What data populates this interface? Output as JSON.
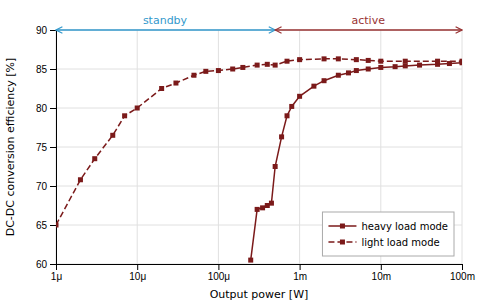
{
  "chart_data": {
    "type": "line",
    "xlabel": "Output power [W]",
    "ylabel": "DC-DC conversion efficiency [%]",
    "log": "x",
    "xlim": [
      1e-06,
      0.1
    ],
    "ylim": [
      60,
      90
    ],
    "xticks": [
      {
        "value": 1e-06,
        "label": "1μ"
      },
      {
        "value": 1e-05,
        "label": "10μ"
      },
      {
        "value": 0.0001,
        "label": "100μ"
      },
      {
        "value": 0.001,
        "label": "1m"
      },
      {
        "value": 0.01,
        "label": "10m"
      },
      {
        "value": 0.1,
        "label": "100m"
      }
    ],
    "yticks": [
      60,
      65,
      70,
      75,
      80,
      85,
      90
    ],
    "grid": true,
    "legend": "lower right",
    "series": [
      {
        "name": "heavy load mode",
        "color": "#7B1A1A",
        "marker": "square",
        "line_style": "solid",
        "x": [
          0.00025,
          0.0003,
          0.00035,
          0.0004,
          0.00045,
          0.0005,
          0.0006,
          0.0007,
          0.0008,
          0.001,
          0.0015,
          0.002,
          0.003,
          0.004,
          0.005,
          0.007,
          0.01,
          0.015,
          0.02,
          0.03,
          0.05,
          0.07,
          0.1
        ],
        "values": [
          60.5,
          67.0,
          67.2,
          67.5,
          67.8,
          72.5,
          76.3,
          79.0,
          80.2,
          81.5,
          82.8,
          83.5,
          84.2,
          84.5,
          84.8,
          85.0,
          85.2,
          85.3,
          85.4,
          85.5,
          85.6,
          85.7,
          85.8
        ]
      },
      {
        "name": "light load mode",
        "color": "#7B1A1A",
        "marker": "square",
        "line_style": "dashed",
        "x": [
          1e-06,
          2e-06,
          3e-06,
          5e-06,
          7e-06,
          1e-05,
          2e-05,
          3e-05,
          5e-05,
          7e-05,
          0.0001,
          0.00015,
          0.0002,
          0.0003,
          0.0004,
          0.0005,
          0.0007,
          0.001,
          0.002,
          0.003,
          0.005,
          0.007,
          0.01,
          0.02,
          0.05,
          0.1
        ],
        "values": [
          65.0,
          70.8,
          73.5,
          76.5,
          79.0,
          80.0,
          82.5,
          83.2,
          84.2,
          84.7,
          84.8,
          85.0,
          85.2,
          85.5,
          85.6,
          85.5,
          86.0,
          86.2,
          86.3,
          86.3,
          86.2,
          86.1,
          86.0,
          86.0,
          86.0,
          86.0
        ]
      }
    ],
    "annotations": [
      {
        "text": "standby",
        "color": "#3399CC",
        "x": 2.2e-05,
        "y": 90.0,
        "arrow": [
          1e-06,
          0.0005
        ]
      },
      {
        "text": "active",
        "color": "#993333",
        "x": 0.007,
        "y": 90.0,
        "arrow": [
          0.0005,
          0.1
        ]
      }
    ]
  }
}
